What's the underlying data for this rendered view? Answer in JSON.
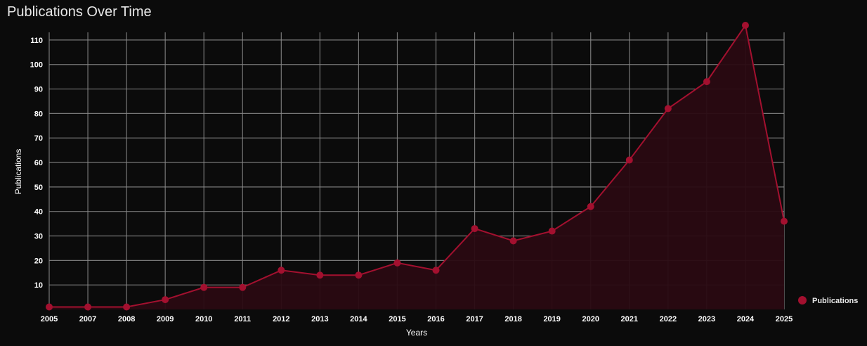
{
  "chart_data": {
    "type": "area",
    "title": "Publications Over Time",
    "xlabel": "Years",
    "ylabel": "Publications",
    "x": [
      "2005",
      "2007",
      "2008",
      "2009",
      "2010",
      "2011",
      "2012",
      "2013",
      "2014",
      "2015",
      "2016",
      "2017",
      "2018",
      "2019",
      "2020",
      "2021",
      "2022",
      "2023",
      "2024",
      "2025"
    ],
    "yticks": [
      10,
      20,
      30,
      40,
      50,
      60,
      70,
      80,
      90,
      100,
      110
    ],
    "ylim": [
      0,
      116
    ],
    "series": [
      {
        "name": "Publications",
        "values": [
          1,
          1,
          1,
          4,
          9,
          9,
          16,
          14,
          14,
          19,
          16,
          33,
          28,
          32,
          42,
          61,
          82,
          93,
          116,
          36
        ],
        "color": "#a3102f",
        "fill": "#2a0a12"
      }
    ],
    "grid": true,
    "legend": "right"
  },
  "colors": {
    "background": "#0b0b0b",
    "grid": "#8a8a8a",
    "text": "#ffffff"
  }
}
